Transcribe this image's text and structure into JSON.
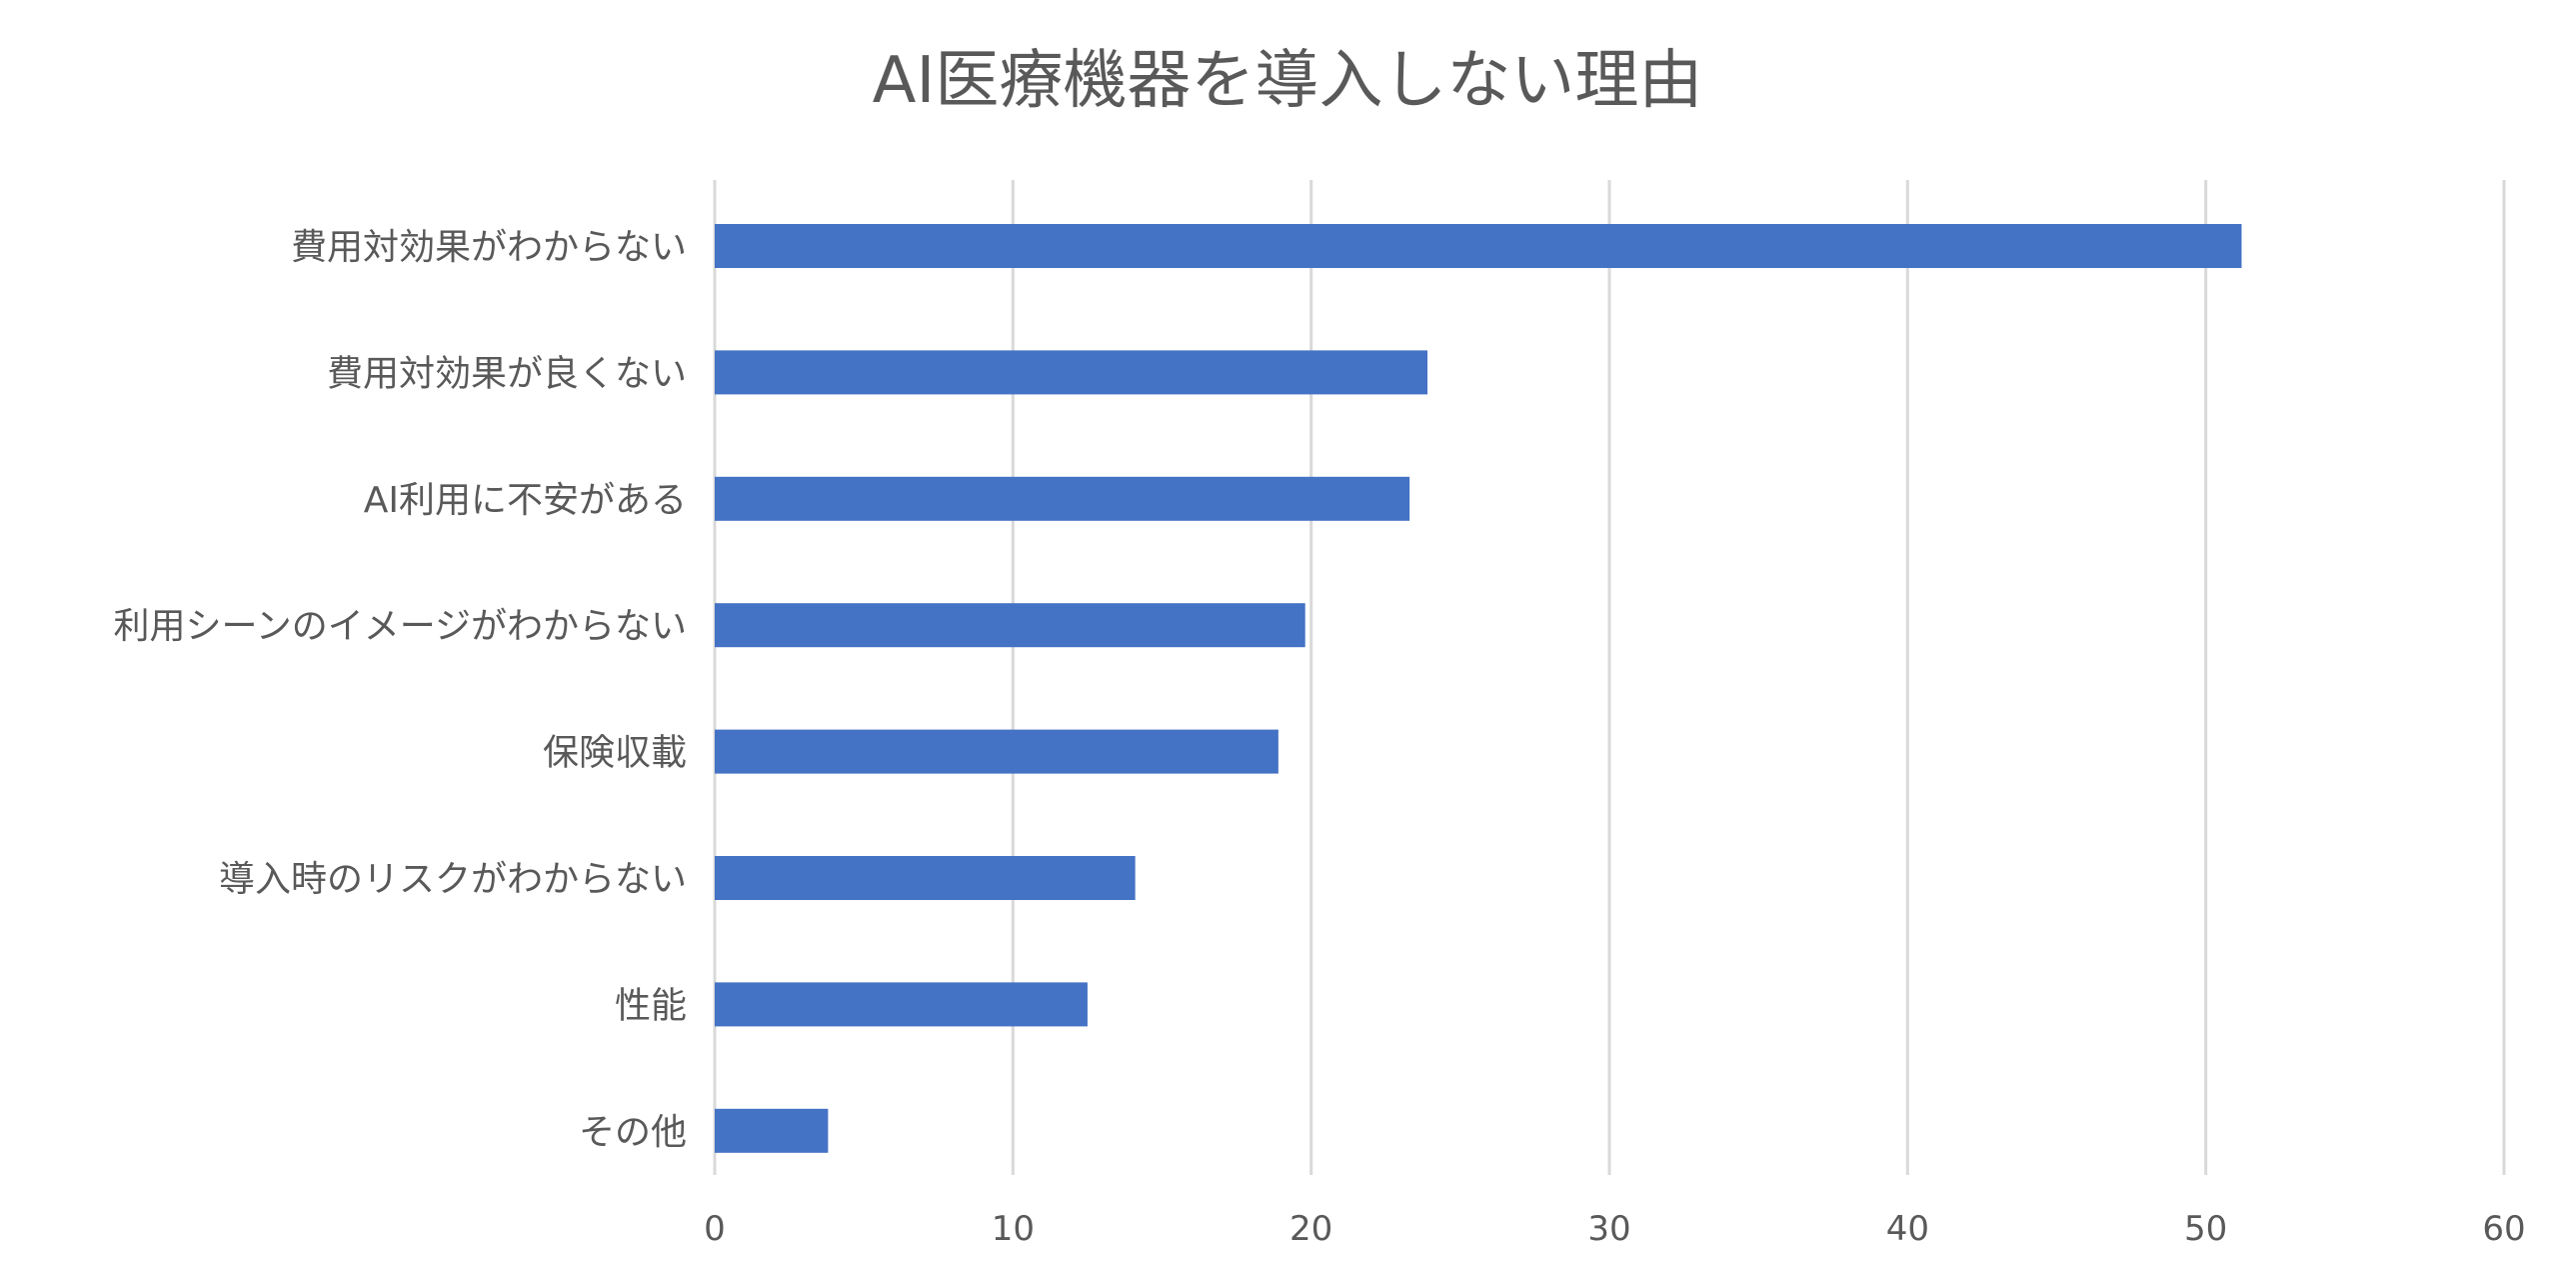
{
  "chart_data": {
    "type": "bar",
    "orientation": "horizontal",
    "title": "AI医療機器を導入しない理由",
    "categories": [
      "費用対効果がわからない",
      "費用対効果が良くない",
      "AI利用に不安がある",
      "利用シーンのイメージがわからない",
      "保険収載",
      "導入時のリスクがわからない",
      "性能",
      "その他"
    ],
    "values": [
      51.2,
      23.9,
      23.3,
      19.8,
      18.9,
      14.1,
      12.5,
      3.8
    ],
    "xlabel": "",
    "ylabel": "",
    "xlim": [
      0,
      60
    ],
    "xticks": [
      "0",
      "10",
      "20",
      "30",
      "40",
      "50",
      "60"
    ],
    "grid": true,
    "legend": "none",
    "bar_color": "#4472C4"
  }
}
